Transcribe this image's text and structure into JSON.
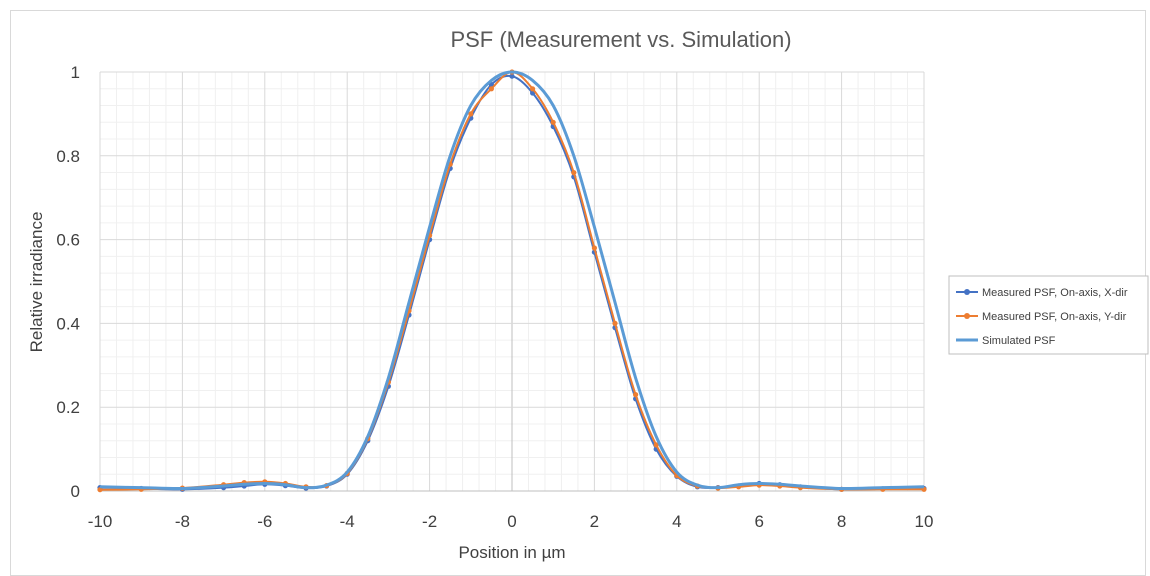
{
  "chart_data": {
    "type": "scatter",
    "title": "PSF (Measurement vs. Simulation)",
    "xlabel": "Position in µm",
    "ylabel": "Relative irradiance",
    "xlim": [
      -10,
      10
    ],
    "ylim": [
      0,
      1
    ],
    "x_ticks": [
      "-10",
      "-8",
      "-6",
      "-4",
      "-2",
      "0",
      "2",
      "4",
      "6",
      "8",
      "10"
    ],
    "y_ticks": [
      "0",
      "0.2",
      "0.4",
      "0.6",
      "0.8",
      "1"
    ],
    "grid": true,
    "legend_position": "right",
    "series": [
      {
        "name": "Measured PSF, On-axis, X-dir",
        "color": "#4472c4",
        "style": "line-with-markers",
        "x": [
          -10,
          -9,
          -8,
          -7,
          -6.5,
          -6,
          -5.5,
          -5,
          -4.5,
          -4,
          -3.5,
          -3,
          -2.5,
          -2,
          -1.5,
          -1,
          -0.5,
          0,
          0.5,
          1,
          1.5,
          2,
          2.5,
          3,
          3.5,
          4,
          4.5,
          5,
          5.5,
          6,
          6.5,
          7,
          8,
          9,
          10
        ],
        "y": [
          0.008,
          0.006,
          0.004,
          0.008,
          0.012,
          0.016,
          0.013,
          0.007,
          0.012,
          0.04,
          0.12,
          0.25,
          0.42,
          0.6,
          0.77,
          0.89,
          0.97,
          0.99,
          0.95,
          0.87,
          0.75,
          0.57,
          0.39,
          0.22,
          0.1,
          0.035,
          0.01,
          0.008,
          0.012,
          0.018,
          0.015,
          0.01,
          0.004,
          0.005,
          0.006
        ]
      },
      {
        "name": "Measured PSF, On-axis, Y-dir",
        "color": "#ed7d31",
        "style": "line-with-markers",
        "x": [
          -10,
          -9,
          -8,
          -7,
          -6.5,
          -6,
          -5.5,
          -5,
          -4.5,
          -4,
          -3.5,
          -3,
          -2.5,
          -2,
          -1.5,
          -1,
          -0.5,
          0,
          0.5,
          1,
          1.5,
          2,
          2.5,
          3,
          3.5,
          4,
          4.5,
          5,
          5.5,
          6,
          6.5,
          7,
          8,
          9,
          10
        ],
        "y": [
          0.003,
          0.004,
          0.007,
          0.015,
          0.02,
          0.022,
          0.018,
          0.01,
          0.013,
          0.042,
          0.125,
          0.26,
          0.43,
          0.61,
          0.78,
          0.9,
          0.96,
          1.0,
          0.96,
          0.88,
          0.76,
          0.58,
          0.4,
          0.23,
          0.11,
          0.037,
          0.012,
          0.007,
          0.01,
          0.014,
          0.012,
          0.008,
          0.004,
          0.004,
          0.004
        ]
      },
      {
        "name": "Simulated PSF",
        "color": "#5b9bd5",
        "style": "line",
        "x": [
          -10,
          -9,
          -8,
          -7,
          -6.5,
          -6,
          -5.5,
          -5,
          -4.5,
          -4,
          -3.5,
          -3,
          -2.5,
          -2,
          -1.5,
          -1,
          -0.5,
          0,
          0.5,
          1,
          1.5,
          2,
          2.5,
          3,
          3.5,
          4,
          4.5,
          5,
          5.5,
          6,
          6.5,
          7,
          8,
          9,
          10
        ],
        "y": [
          0.01,
          0.008,
          0.006,
          0.012,
          0.016,
          0.018,
          0.015,
          0.008,
          0.014,
          0.045,
          0.13,
          0.27,
          0.45,
          0.63,
          0.8,
          0.92,
          0.98,
          1.0,
          0.98,
          0.92,
          0.8,
          0.63,
          0.45,
          0.27,
          0.13,
          0.045,
          0.014,
          0.008,
          0.015,
          0.018,
          0.016,
          0.012,
          0.006,
          0.008,
          0.01
        ]
      }
    ]
  }
}
